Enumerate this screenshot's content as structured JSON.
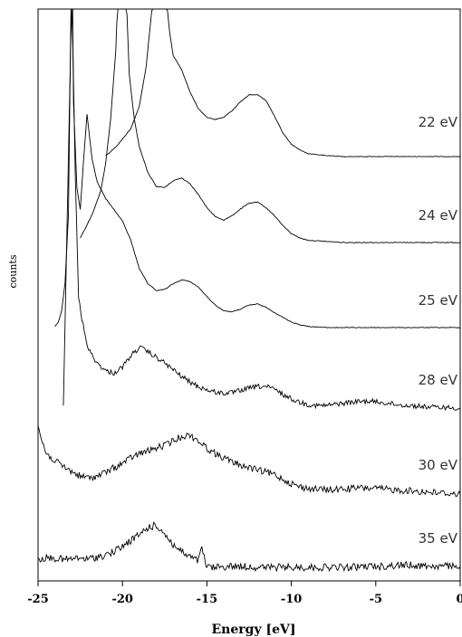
{
  "chart_data": {
    "type": "line",
    "title": "",
    "xlabel": "Energy [eV]",
    "ylabel": "counts",
    "xlim": [
      -25,
      0
    ],
    "xticks": [
      -25,
      -20,
      -15,
      -10,
      -5,
      0
    ],
    "xtick_labels": [
      "-25",
      "-20",
      "-15",
      "-10",
      "-5",
      "0"
    ],
    "grid": false,
    "legend": "none (series labels placed at right end of each curve)",
    "series": [
      {
        "name": "22 eV",
        "x": [
          -21,
          -20.8,
          -20.3,
          -19.5,
          -19,
          -18.6,
          -18.2,
          -18,
          -17.8,
          -17.6,
          -17.4,
          -17.2,
          -17,
          -16.5,
          -16,
          -15.5,
          -15,
          -14.5,
          -14,
          -13.5,
          -13,
          -12.5,
          -12,
          -11.5,
          -11,
          -10.5,
          -10,
          -9.5,
          -9,
          -8,
          -7,
          -6,
          -5,
          -4,
          -3,
          -2,
          -1,
          0
        ],
        "y": [
          0.02,
          0.06,
          0.2,
          0.5,
          0.9,
          1.6,
          2.8,
          4.2,
          7.5,
          4.2,
          2.8,
          2.2,
          1.8,
          1.55,
          1.15,
          0.85,
          0.7,
          0.66,
          0.7,
          0.82,
          0.98,
          1.1,
          1.1,
          1.0,
          0.72,
          0.42,
          0.22,
          0.12,
          0.05,
          0.02,
          0.0,
          0.0,
          0.0,
          0.0,
          0.0,
          0.0,
          0.0,
          0.0
        ]
      },
      {
        "name": "24 eV",
        "x": [
          -22.5,
          -22.2,
          -21.8,
          -21.3,
          -21,
          -20.7,
          -20.4,
          -20.2,
          -20,
          -19.8,
          -19.6,
          -19.3,
          -19,
          -18.5,
          -18,
          -17.5,
          -17,
          -16.5,
          -16,
          -15.5,
          -15,
          -14.5,
          -14,
          -13.5,
          -13,
          -12.5,
          -12,
          -11.5,
          -11,
          -10.5,
          -10,
          -9.5,
          -9,
          -8,
          -7,
          -6,
          -5,
          -4,
          -3,
          -2,
          -1,
          0
        ],
        "y": [
          0.08,
          0.25,
          0.5,
          0.9,
          1.4,
          2.2,
          3.4,
          5.0,
          7.5,
          4.6,
          3.0,
          2.2,
          1.7,
          1.25,
          1.0,
          0.98,
          1.1,
          1.15,
          1.05,
          0.85,
          0.62,
          0.46,
          0.4,
          0.48,
          0.6,
          0.7,
          0.72,
          0.62,
          0.48,
          0.3,
          0.16,
          0.08,
          0.04,
          0.02,
          0.0,
          0.0,
          0.0,
          0.0,
          0.0,
          0.0,
          0.0,
          0.0
        ]
      },
      {
        "name": "25 eV",
        "x": [
          -24,
          -23.8,
          -23.6,
          -23.4,
          -23.2,
          -23.1,
          -23,
          -22.9,
          -22.7,
          -22.5,
          -22.3,
          -22.1,
          -21.8,
          -21.5,
          -21,
          -20.5,
          -20,
          -19.5,
          -19,
          -18.5,
          -18,
          -17.5,
          -17,
          -16.5,
          -16,
          -15.5,
          -15,
          -14.5,
          -14,
          -13.5,
          -13,
          -12.5,
          -12,
          -11.5,
          -11,
          -10.5,
          -10,
          -9.5,
          -9,
          -8,
          -7,
          -6,
          -5,
          -4,
          -3,
          -2,
          -1,
          0
        ],
        "y": [
          0.02,
          0.1,
          0.3,
          0.8,
          2.0,
          4.5,
          7.5,
          4.0,
          2.5,
          2.1,
          3.0,
          3.8,
          3.0,
          2.6,
          2.3,
          2.1,
          1.9,
          1.55,
          1.05,
          0.78,
          0.66,
          0.68,
          0.78,
          0.85,
          0.82,
          0.72,
          0.55,
          0.4,
          0.3,
          0.28,
          0.33,
          0.4,
          0.42,
          0.36,
          0.27,
          0.18,
          0.1,
          0.05,
          0.02,
          0.0,
          0.0,
          0.0,
          0.0,
          0.0,
          0.0,
          0.0,
          0.0,
          0.0
        ]
      },
      {
        "name": "28 eV",
        "x": [
          -23.5,
          -23.3,
          -23,
          -22.8,
          -22.6,
          -22.4,
          -22.2,
          -22,
          -21.5,
          -21,
          -20.5,
          -20,
          -19.5,
          -19,
          -18.5,
          -18,
          -17.5,
          -17,
          -16.5,
          -16,
          -15.5,
          -15,
          -14.5,
          -14,
          -13.5,
          -13,
          -12.5,
          -12,
          -11.5,
          -11,
          -10.5,
          -10,
          -9.5,
          -9,
          -8.5,
          -8,
          -7.5,
          -7,
          -6.5,
          -6,
          -5.5,
          -5,
          -4.5,
          -4,
          -3.5,
          -3,
          -2.5,
          -2,
          -1.5,
          -1,
          -0.5,
          0
        ],
        "y": [
          0.1,
          3.0,
          7.5,
          4.2,
          2.0,
          1.6,
          1.3,
          1.05,
          0.82,
          0.68,
          0.64,
          0.75,
          0.95,
          1.1,
          1.02,
          0.92,
          0.82,
          0.7,
          0.58,
          0.48,
          0.4,
          0.34,
          0.3,
          0.28,
          0.29,
          0.33,
          0.37,
          0.4,
          0.4,
          0.35,
          0.26,
          0.18,
          0.12,
          0.08,
          0.06,
          0.06,
          0.08,
          0.1,
          0.12,
          0.13,
          0.14,
          0.13,
          0.11,
          0.09,
          0.07,
          0.06,
          0.05,
          0.04,
          0.03,
          0.03,
          0.02,
          0.02
        ]
      },
      {
        "name": "30 eV",
        "x": [
          -25,
          -24.8,
          -24.5,
          -24,
          -23.5,
          -23,
          -22.5,
          -22,
          -21.5,
          -21,
          -20.5,
          -20,
          -19.5,
          -19,
          -18.5,
          -18,
          -17.5,
          -17,
          -16.5,
          -16,
          -15.5,
          -15,
          -14.5,
          -14,
          -13.5,
          -13,
          -12.5,
          -12,
          -11.5,
          -11,
          -10.5,
          -10,
          -9.5,
          -9,
          -8.5,
          -8,
          -7.5,
          -7,
          -6.5,
          -6,
          -5.5,
          -5,
          -4.5,
          -4,
          -3.5,
          -3,
          -2.5,
          -2,
          -1.5,
          -1,
          -0.5,
          0
        ],
        "y": [
          1.25,
          1.0,
          0.75,
          0.62,
          0.52,
          0.43,
          0.35,
          0.32,
          0.35,
          0.42,
          0.5,
          0.58,
          0.68,
          0.75,
          0.8,
          0.85,
          0.9,
          0.98,
          1.06,
          1.08,
          0.98,
          0.85,
          0.75,
          0.68,
          0.6,
          0.55,
          0.5,
          0.46,
          0.42,
          0.38,
          0.3,
          0.22,
          0.16,
          0.13,
          0.12,
          0.11,
          0.11,
          0.12,
          0.13,
          0.14,
          0.14,
          0.13,
          0.12,
          0.11,
          0.1,
          0.09,
          0.08,
          0.07,
          0.06,
          0.05,
          0.04,
          0.03
        ]
      },
      {
        "name": "35 eV",
        "x": [
          -25,
          -24.5,
          -24,
          -23.5,
          -23,
          -22.5,
          -22,
          -21.5,
          -21,
          -20.5,
          -20,
          -19.5,
          -19,
          -18.7,
          -18.4,
          -18.1,
          -17.8,
          -17.5,
          -17.2,
          -17,
          -16.5,
          -16,
          -15.5,
          -15.3,
          -15.1,
          -15,
          -14.5,
          -14,
          -13.5,
          -13,
          -12.5,
          -12,
          -11.5,
          -11,
          -10.5,
          -10,
          -9.5,
          -9,
          -8.5,
          -8,
          -7.5,
          -7,
          -6.5,
          -6,
          -5.5,
          -5,
          -4.5,
          -4,
          -3.5,
          -3,
          -2.5,
          -2,
          -1.5,
          -1,
          -0.5,
          0
        ],
        "y": [
          0.22,
          0.25,
          0.24,
          0.22,
          0.23,
          0.24,
          0.23,
          0.26,
          0.3,
          0.36,
          0.45,
          0.56,
          0.66,
          0.74,
          0.8,
          0.82,
          0.78,
          0.68,
          0.56,
          0.48,
          0.36,
          0.26,
          0.2,
          0.42,
          0.18,
          0.08,
          0.08,
          0.09,
          0.1,
          0.1,
          0.09,
          0.08,
          0.08,
          0.08,
          0.08,
          0.08,
          0.08,
          0.08,
          0.08,
          0.08,
          0.08,
          0.08,
          0.08,
          0.09,
          0.1,
          0.1,
          0.1,
          0.11,
          0.12,
          0.12,
          0.11,
          0.11,
          0.1,
          0.1,
          0.1,
          0.1
        ]
      }
    ]
  }
}
